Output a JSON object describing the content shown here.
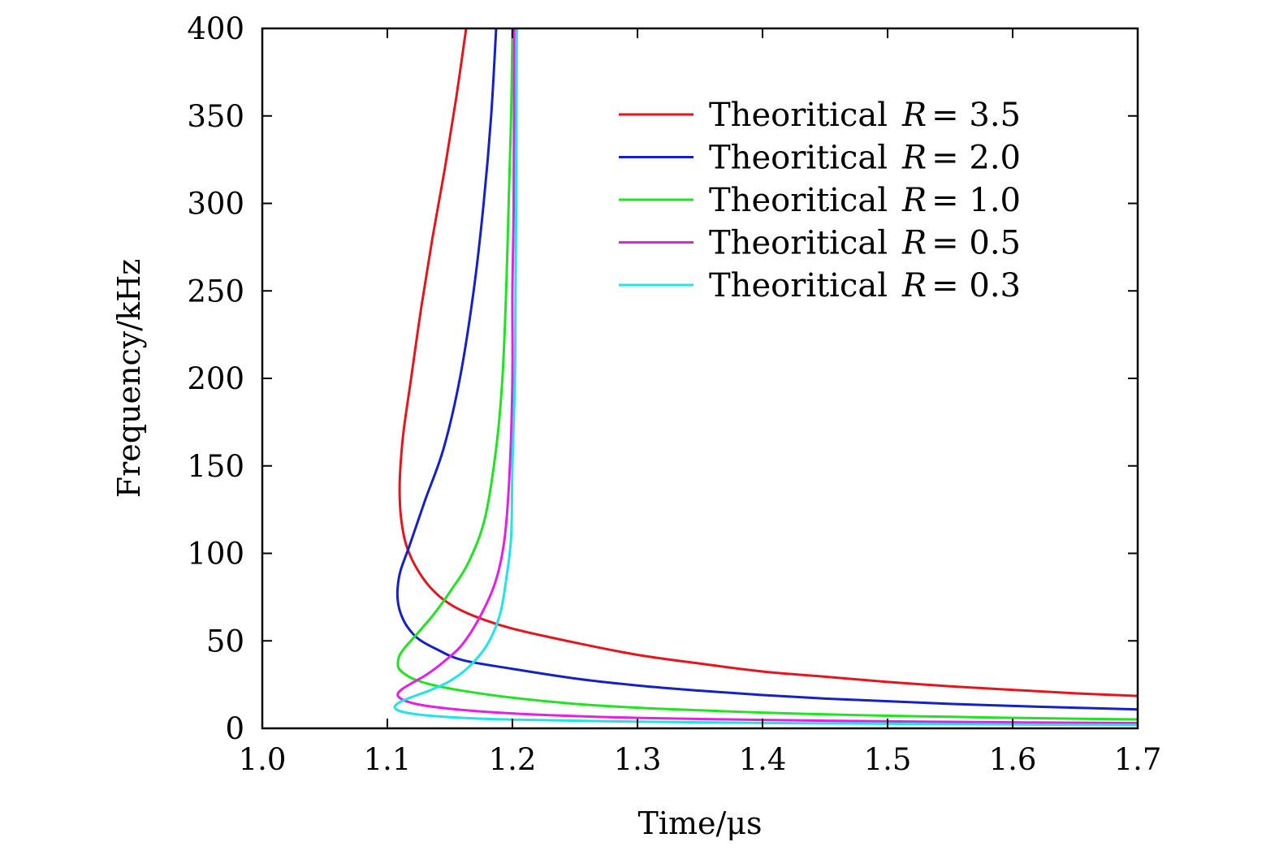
{
  "chart_data": {
    "type": "line",
    "title": "",
    "xlabel": "Time/μs",
    "ylabel": "Frequency/kHz",
    "xlim": [
      1.0,
      1.7
    ],
    "ylim": [
      0,
      400
    ],
    "x_ticks": [
      "1.0",
      "1.1",
      "1.2",
      "1.3",
      "1.4",
      "1.5",
      "1.6",
      "1.7"
    ],
    "y_ticks": [
      "0",
      "50",
      "100",
      "150",
      "200",
      "250",
      "300",
      "350",
      "400"
    ],
    "grid": false,
    "legend_position": "top-right",
    "series": [
      {
        "name": "R=3.5",
        "label_prefix": "Theoritical",
        "label_var": "R",
        "label_value": "= 3.5",
        "color": "#e8141b",
        "points": [
          [
            1.163,
            400
          ],
          [
            1.155,
            360
          ],
          [
            1.146,
            320
          ],
          [
            1.136,
            280
          ],
          [
            1.127,
            240
          ],
          [
            1.119,
            200
          ],
          [
            1.113,
            170
          ],
          [
            1.1105,
            150
          ],
          [
            1.1098,
            135
          ],
          [
            1.111,
            120
          ],
          [
            1.115,
            105
          ],
          [
            1.123,
            92
          ],
          [
            1.135,
            80
          ],
          [
            1.15,
            71
          ],
          [
            1.17,
            64
          ],
          [
            1.2,
            57
          ],
          [
            1.25,
            49
          ],
          [
            1.3,
            42
          ],
          [
            1.35,
            37
          ],
          [
            1.4,
            32.5
          ],
          [
            1.45,
            29.5
          ],
          [
            1.5,
            26.5
          ],
          [
            1.55,
            24
          ],
          [
            1.6,
            22
          ],
          [
            1.65,
            20
          ],
          [
            1.7,
            18.5
          ]
        ]
      },
      {
        "name": "R=2.0",
        "label_prefix": "Theoritical",
        "label_var": "R",
        "label_value": "= 2.0",
        "color": "#1420c8",
        "points": [
          [
            1.187,
            400
          ],
          [
            1.183,
            350
          ],
          [
            1.177,
            300
          ],
          [
            1.169,
            250
          ],
          [
            1.158,
            200
          ],
          [
            1.145,
            160
          ],
          [
            1.13,
            130
          ],
          [
            1.118,
            105
          ],
          [
            1.1105,
            90
          ],
          [
            1.1082,
            80
          ],
          [
            1.1085,
            72
          ],
          [
            1.111,
            65
          ],
          [
            1.116,
            58
          ],
          [
            1.125,
            51
          ],
          [
            1.14,
            45
          ],
          [
            1.16,
            39
          ],
          [
            1.2,
            34
          ],
          [
            1.25,
            28.5
          ],
          [
            1.3,
            24.5
          ],
          [
            1.35,
            21.5
          ],
          [
            1.4,
            19
          ],
          [
            1.45,
            17
          ],
          [
            1.5,
            15.5
          ],
          [
            1.55,
            14
          ],
          [
            1.6,
            12.8
          ],
          [
            1.65,
            11.8
          ],
          [
            1.7,
            10.8
          ]
        ]
      },
      {
        "name": "R=1.0",
        "label_prefix": "Theoritical",
        "label_var": "R",
        "label_value": "= 1.0",
        "color": "#1ee61e",
        "points": [
          [
            1.2,
            400
          ],
          [
            1.199,
            350
          ],
          [
            1.197,
            300
          ],
          [
            1.195,
            250
          ],
          [
            1.192,
            200
          ],
          [
            1.187,
            160
          ],
          [
            1.178,
            120
          ],
          [
            1.165,
            95
          ],
          [
            1.152,
            80
          ],
          [
            1.138,
            66
          ],
          [
            1.125,
            55
          ],
          [
            1.115,
            47
          ],
          [
            1.11,
            42
          ],
          [
            1.1085,
            38
          ],
          [
            1.109,
            34.5
          ],
          [
            1.113,
            31.5
          ],
          [
            1.12,
            28.5
          ],
          [
            1.135,
            25
          ],
          [
            1.16,
            21.5
          ],
          [
            1.2,
            17.5
          ],
          [
            1.25,
            14
          ],
          [
            1.3,
            11.8
          ],
          [
            1.35,
            10.3
          ],
          [
            1.4,
            9
          ],
          [
            1.45,
            8
          ],
          [
            1.5,
            7.2
          ],
          [
            1.55,
            6.6
          ],
          [
            1.6,
            6
          ],
          [
            1.65,
            5.5
          ],
          [
            1.7,
            5.1
          ]
        ]
      },
      {
        "name": "R=0.5",
        "label_prefix": "Theoritical",
        "label_var": "R",
        "label_value": "= 0.5",
        "color": "#e61ee6",
        "points": [
          [
            1.2015,
            400
          ],
          [
            1.201,
            300
          ],
          [
            1.2,
            250
          ],
          [
            1.2,
            200
          ],
          [
            1.198,
            150
          ],
          [
            1.194,
            110
          ],
          [
            1.187,
            85
          ],
          [
            1.175,
            65
          ],
          [
            1.16,
            48
          ],
          [
            1.145,
            38
          ],
          [
            1.132,
            31
          ],
          [
            1.12,
            26
          ],
          [
            1.112,
            22.5
          ],
          [
            1.1085,
            20
          ],
          [
            1.109,
            18
          ],
          [
            1.115,
            15.5
          ],
          [
            1.13,
            13
          ],
          [
            1.16,
            10.5
          ],
          [
            1.2,
            8.5
          ],
          [
            1.25,
            7
          ],
          [
            1.3,
            6
          ],
          [
            1.4,
            4.8
          ],
          [
            1.5,
            4
          ],
          [
            1.6,
            3.4
          ],
          [
            1.7,
            3
          ]
        ]
      },
      {
        "name": "R=0.3",
        "label_prefix": "Theoritical",
        "label_var": "R",
        "label_value": "= 0.3",
        "color": "#1ee6e6",
        "points": [
          [
            1.2035,
            400
          ],
          [
            1.203,
            300
          ],
          [
            1.2025,
            250
          ],
          [
            1.202,
            200
          ],
          [
            1.2,
            150
          ],
          [
            1.199,
            110
          ],
          [
            1.195,
            85
          ],
          [
            1.19,
            65
          ],
          [
            1.18,
            48
          ],
          [
            1.165,
            35
          ],
          [
            1.15,
            27
          ],
          [
            1.135,
            22
          ],
          [
            1.12,
            18
          ],
          [
            1.11,
            15
          ],
          [
            1.106,
            12.5
          ],
          [
            1.108,
            10.5
          ],
          [
            1.115,
            9
          ],
          [
            1.13,
            7.5
          ],
          [
            1.16,
            6
          ],
          [
            1.2,
            5
          ],
          [
            1.3,
            3.8
          ],
          [
            1.4,
            3.1
          ],
          [
            1.5,
            2.6
          ],
          [
            1.6,
            2.2
          ],
          [
            1.7,
            1.9
          ]
        ]
      }
    ]
  }
}
